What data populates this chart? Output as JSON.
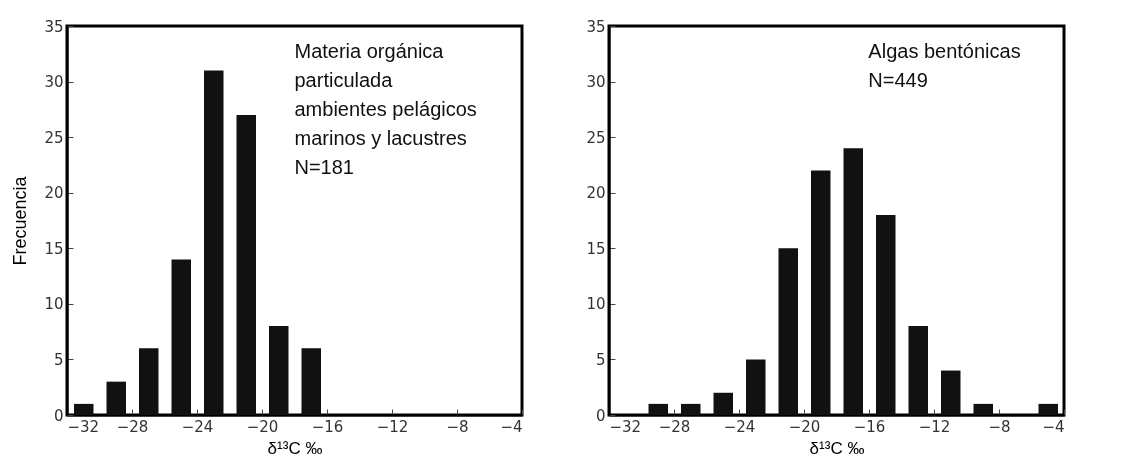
{
  "chart_data": [
    {
      "type": "histogram",
      "bins": [
        -32,
        -30,
        -28,
        -26,
        -24,
        -22,
        -20,
        -18,
        -16,
        -14,
        -12,
        -10,
        -8,
        -6,
        -4
      ],
      "values": [
        1,
        3,
        6,
        14,
        31,
        27,
        8,
        6,
        0,
        0,
        0,
        0,
        0,
        0
      ],
      "color": "#111111",
      "xlabel": "δ¹³C ‰",
      "ylabel": "Frecuencia",
      "xlim": [
        -32,
        -4
      ],
      "xticks": [
        -32,
        -28,
        -24,
        -20,
        -16,
        -12,
        -8,
        -4
      ],
      "ylim": [
        0,
        35
      ],
      "yticks": [
        0,
        5,
        10,
        15,
        20,
        25,
        30,
        35
      ],
      "annotations": [
        "Materia orgánica\nparticulada\nambientes pelágicos\nmarinos y lacustres\nN=181"
      ]
    },
    {
      "type": "histogram",
      "bins": [
        -32,
        -30,
        -28,
        -26,
        -24,
        -22,
        -20,
        -18,
        -16,
        -14,
        -12,
        -10,
        -8,
        -6,
        -4
      ],
      "values": [
        0,
        1,
        1,
        2,
        5,
        15,
        22,
        24,
        18,
        8,
        4,
        1,
        0,
        1
      ],
      "color": "#111111",
      "xlabel": "δ¹³C ‰",
      "xlim": [
        -32,
        -4
      ],
      "xticks": [
        -32,
        -28,
        -24,
        -20,
        -16,
        -12,
        -8,
        -4
      ],
      "ylim": [
        0,
        35
      ],
      "yticks": [
        0,
        5,
        10,
        15,
        20,
        25,
        30,
        35
      ],
      "annotations": [
        "Algas bentónicas\nN=449"
      ]
    }
  ]
}
